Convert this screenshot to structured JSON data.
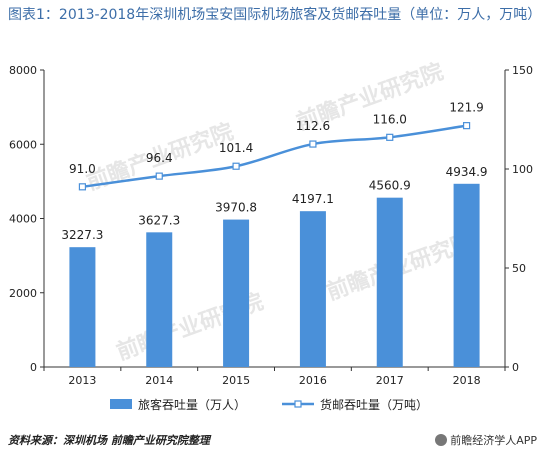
{
  "title": "图表1：2013-2018年深圳机场宝安国际机场旅客及货邮吞吐量（单位：万人，万吨）",
  "source": "资料来源：深圳机场  前瞻产业研究院整理",
  "credit": "前瞻经济学人APP",
  "watermark": "前瞻产业研究院",
  "colors": {
    "bar": "#4a90d9",
    "line": "#4a90d9",
    "title": "#3d6ea8"
  },
  "chart_data": {
    "type": "bar+line",
    "categories": [
      "2013",
      "2014",
      "2015",
      "2016",
      "2017",
      "2018"
    ],
    "series": [
      {
        "name": "旅客吞吐量（万人）",
        "type": "bar",
        "axis": "left",
        "values": [
          3227.3,
          3627.3,
          3970.8,
          4197.1,
          4560.9,
          4934.9
        ]
      },
      {
        "name": "货邮吞吐量（万吨）",
        "type": "line",
        "axis": "right",
        "values": [
          91.0,
          96.4,
          101.4,
          112.6,
          116.0,
          121.9
        ]
      }
    ],
    "y_left": {
      "min": 0,
      "max": 8000,
      "ticks": [
        "0",
        "2000",
        "4000",
        "6000",
        "8000"
      ]
    },
    "y_right": {
      "min": 0,
      "max": 150,
      "ticks": [
        "0",
        "50",
        "100",
        "150"
      ]
    },
    "bar_labels": [
      "3227.3",
      "3627.3",
      "3970.8",
      "4197.1",
      "4560.9",
      "4934.9"
    ],
    "line_labels": [
      "91.0",
      "96.4",
      "101.4",
      "112.6",
      "116.0",
      "121.9"
    ],
    "legend_position": "bottom",
    "grid": false
  }
}
